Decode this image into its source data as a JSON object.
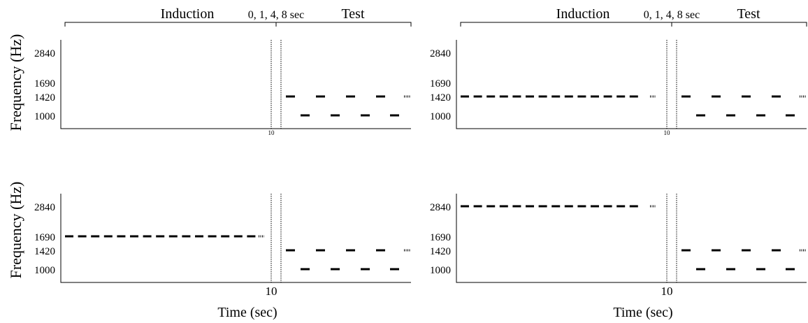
{
  "header": {
    "induction_label": "Induction",
    "interval_label": "0, 1, 4, 8 sec",
    "test_label": "Test"
  },
  "y_axis_label": "Frequency (Hz)",
  "x_axis_label": "Time (sec)",
  "x_tick_label": "10",
  "y_tick_labels": [
    "2840",
    "1690",
    "1420",
    "1000"
  ],
  "panels": [
    {
      "id": "top-left",
      "induction_frequency": null,
      "x_tick_size": "small"
    },
    {
      "id": "top-right",
      "induction_frequency": 1420,
      "x_tick_size": "small"
    },
    {
      "id": "bottom-left",
      "induction_frequency": 1690,
      "x_tick_size": "large"
    },
    {
      "id": "bottom-right",
      "induction_frequency": 2840,
      "x_tick_size": "large"
    }
  ],
  "test_frequencies": [
    1420,
    1000
  ]
}
